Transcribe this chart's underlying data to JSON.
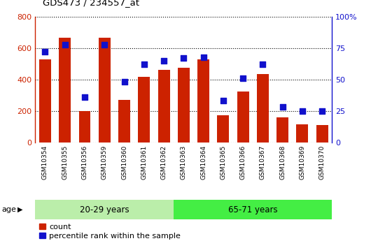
{
  "title": "GDS473 / 234557_at",
  "categories": [
    "GSM10354",
    "GSM10355",
    "GSM10356",
    "GSM10359",
    "GSM10360",
    "GSM10361",
    "GSM10362",
    "GSM10363",
    "GSM10364",
    "GSM10365",
    "GSM10366",
    "GSM10367",
    "GSM10368",
    "GSM10369",
    "GSM10370"
  ],
  "counts": [
    530,
    665,
    200,
    665,
    270,
    415,
    460,
    475,
    530,
    170,
    325,
    435,
    160,
    115,
    110
  ],
  "percentiles": [
    72,
    78,
    36,
    78,
    48,
    62,
    65,
    67,
    68,
    33,
    51,
    62,
    28,
    25,
    25
  ],
  "group1_label": "20-29 years",
  "group1_count": 7,
  "group2_label": "65-71 years",
  "group2_count": 8,
  "age_label": "age",
  "bar_color": "#cc2200",
  "dot_color": "#1111cc",
  "group1_bg": "#bbeeaa",
  "group2_bg": "#44ee44",
  "ylim_left": [
    0,
    800
  ],
  "ylim_right": [
    0,
    100
  ],
  "yticks_left": [
    0,
    200,
    400,
    600,
    800
  ],
  "yticks_right": [
    0,
    25,
    50,
    75,
    100
  ],
  "legend_count_label": "count",
  "legend_pct_label": "percentile rank within the sample",
  "xtick_bg_color": "#cccccc",
  "plot_bg": "#ffffff",
  "fig_bg": "#ffffff"
}
